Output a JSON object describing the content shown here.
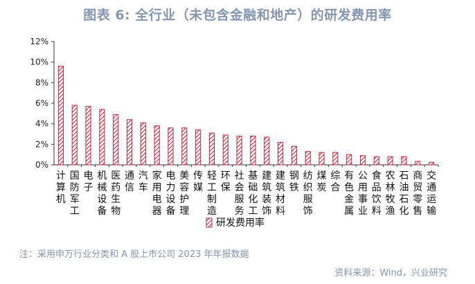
{
  "title": "图表 6:  全行业（未包含金融和地产）的研发费用率",
  "note": "注：采用申万行业分类和 A 股上市公司 2023 年年报数据",
  "source": "资料来源：Wind，兴业研究",
  "bar_color": "#c0283a",
  "chart_data": {
    "type": "bar",
    "title": "图表 6:  全行业（未包含金融和地产）的研发费用率",
    "series": [
      {
        "name": "研发费用率",
        "values": [
          9.6,
          5.8,
          5.7,
          5.4,
          4.9,
          4.4,
          4.1,
          3.8,
          3.6,
          3.6,
          3.4,
          3.1,
          2.9,
          2.8,
          2.8,
          2.7,
          2.2,
          1.8,
          1.3,
          1.2,
          1.2,
          1.0,
          0.9,
          0.8,
          0.8,
          0.8,
          0.35,
          0.25
        ]
      }
    ],
    "categories": [
      "计算机",
      "国防军工",
      "电子",
      "机械设备",
      "医药生物",
      "通信",
      "汽车",
      "家用电器",
      "电力设备",
      "美容护理",
      "传媒",
      "轻工制造",
      "环保",
      "社会服务",
      "基础化工",
      "建筑装饰",
      "建筑材料",
      "钢铁",
      "纺织服饰",
      "煤炭",
      "综合",
      "有色金属",
      "公用事业",
      "食品饮料",
      "农林牧渔",
      "石油石化",
      "商贸零售",
      "交通运输"
    ],
    "y_ticks": [
      "0%",
      "2%",
      "4%",
      "6%",
      "8%",
      "10%",
      "12%"
    ],
    "ylim": [
      0,
      12
    ],
    "ytick_step": 2,
    "legend": "研发费用率",
    "legend_position": "bottom-center",
    "grid": false,
    "hatch": "diagonal"
  }
}
